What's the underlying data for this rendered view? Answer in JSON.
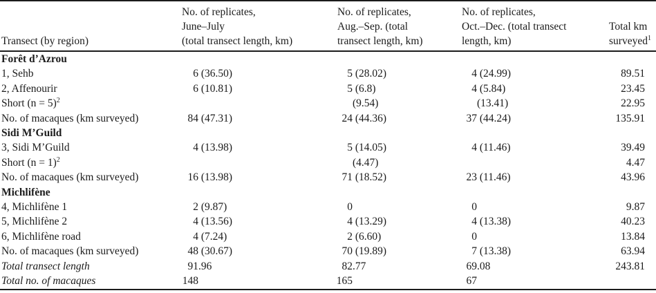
{
  "meta": {
    "background_color": "#ffffff",
    "text_color": "#1b1b1b",
    "rule_color": "#1b1b1b"
  },
  "table": {
    "header": {
      "col1": {
        "lines": [
          "Transect (by region)"
        ]
      },
      "col2": {
        "lines": [
          "No. of replicates,",
          "June–July",
          "(total transect length, km)"
        ]
      },
      "col3": {
        "lines": [
          "No. of replicates,",
          "Aug.–Sep. (total",
          "transect length, km)"
        ]
      },
      "col4": {
        "lines": [
          "No. of replicates,",
          "Oct.–Dec. (total transect",
          "length, km)"
        ]
      },
      "col5": {
        "lines": [
          "Total km",
          "surveyed"
        ],
        "sup": "1"
      }
    },
    "rows": [
      {
        "type": "section",
        "label": "Forêt d’Azrou"
      },
      {
        "type": "data",
        "label": "1, Sehb",
        "cells": [
          "6 (36.50)",
          "5 (28.02)",
          "4 (24.99)",
          "89.51"
        ]
      },
      {
        "type": "data",
        "label": "2, Affenourir",
        "cells": [
          "6 (10.81)",
          "5 (6.8)",
          "4 (5.84)",
          "23.45"
        ]
      },
      {
        "type": "data",
        "label": "Short (n = 5)",
        "label_sup": "2",
        "cells": [
          "",
          "(9.54)",
          "(13.41)",
          "22.95"
        ]
      },
      {
        "type": "data",
        "label": "No. of macaques (km surveyed)",
        "cells": [
          "84 (47.31)",
          "24 (44.36)",
          "37 (44.24)",
          "135.91"
        ]
      },
      {
        "type": "section",
        "label": "Sidi M’Guild"
      },
      {
        "type": "data",
        "label": "3, Sidi M’Guild",
        "cells": [
          "4 (13.98)",
          "5 (14.05)",
          "4 (11.46)",
          "39.49"
        ]
      },
      {
        "type": "data",
        "label": "Short (n = 1)",
        "label_sup": "2",
        "cells": [
          "",
          "(4.47)",
          "",
          "4.47"
        ]
      },
      {
        "type": "data",
        "label": "No. of macaques (km surveyed)",
        "cells": [
          "16 (13.98)",
          "71 (18.52)",
          "23 (11.46)",
          "43.96"
        ]
      },
      {
        "type": "section",
        "label": "Michlifène"
      },
      {
        "type": "data",
        "label": "4, Michlifène 1",
        "cells": [
          "2 (9.87)",
          "0",
          "0",
          "9.87"
        ]
      },
      {
        "type": "data",
        "label": "5, Michlifène 2",
        "cells": [
          "4 (13.56)",
          "4 (13.29)",
          "4 (13.38)",
          "40.23"
        ]
      },
      {
        "type": "data",
        "label": "6, Michlifène road",
        "cells": [
          "4 (7.24)",
          "2 (6.60)",
          "0",
          "13.84"
        ]
      },
      {
        "type": "data",
        "label": "No. of macaques (km surveyed)",
        "cells": [
          "48 (30.67)",
          "70 (19.89)",
          "7 (13.38)",
          "63.94"
        ]
      },
      {
        "type": "total",
        "label": "Total transect length",
        "cells": [
          "91.96",
          "82.77",
          "69.08",
          "243.81"
        ]
      },
      {
        "type": "total",
        "label": "Total no. of macaques",
        "cells": [
          "148",
          "165",
          "67",
          ""
        ]
      }
    ]
  }
}
